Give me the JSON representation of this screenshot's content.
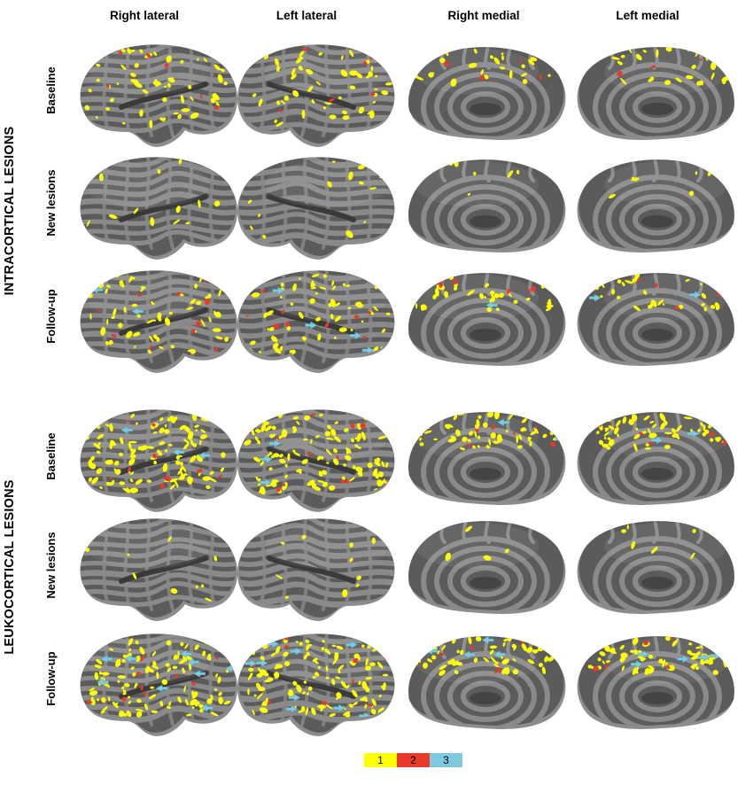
{
  "figure": {
    "columns": [
      "Right lateral",
      "Left lateral",
      "Right medial",
      "Left medial"
    ],
    "groups": [
      {
        "label": "INTRACORTICAL LESIONS",
        "rows": [
          "Baseline",
          "New lesions",
          "Follow-up"
        ]
      },
      {
        "label": "LEUKOCORTICAL LESIONS",
        "rows": [
          "Baseline",
          "New lesions",
          "Follow-up"
        ]
      }
    ],
    "legend": [
      {
        "label": "1",
        "color": "#ffff00"
      },
      {
        "label": "2",
        "color": "#e8392c"
      },
      {
        "label": "3",
        "color": "#7fcadf"
      }
    ],
    "colors": {
      "cortex_dark": "#5b5b5b",
      "cortex_light": "#8a8a8a",
      "shadow": "#2e2e2e"
    }
  }
}
